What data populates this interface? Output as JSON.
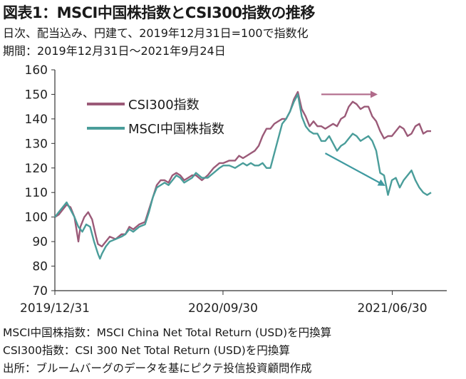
{
  "title": "図表1：MSCI中国株指数とCSI300指数の推移",
  "subtitle_1": "日次、配当込み、円建て、2019年12月31日=100で指数化",
  "subtitle_2": "期間：2019年12月31日～2021年9月24日",
  "notes": [
    "MSCI中国株指数：MSCI China Net Total Return (USD)を円換算",
    "CSI300指数：CSI 300 Net Total Return (USD)を円換算",
    "出所：ブルームバーグのデータを基にピクテ投信投資顧問作成"
  ],
  "colors": {
    "csi300": "#9b5a78",
    "msci": "#4a9d9a",
    "arrow_csi": "#b06a8a",
    "arrow_msci": "#3f9aa0",
    "grid": "#d0d0d0"
  },
  "chart_data": {
    "type": "line",
    "ylim": [
      70,
      160
    ],
    "yticks": [
      70,
      80,
      90,
      100,
      110,
      120,
      130,
      140,
      150,
      160
    ],
    "x_ticks": [
      {
        "label": "2019/12/31",
        "pos": 0
      },
      {
        "label": "2020/09/30",
        "pos": 0.429
      },
      {
        "label": "2021/06/30",
        "pos": 0.861
      }
    ],
    "legend": "upper-left",
    "grid": false,
    "series": [
      {
        "name": "CSI300指数",
        "color": "#9b5a78",
        "points": [
          [
            0,
            100
          ],
          [
            0.01,
            101
          ],
          [
            0.02,
            103
          ],
          [
            0.03,
            105
          ],
          [
            0.04,
            104
          ],
          [
            0.05,
            100
          ],
          [
            0.055,
            95
          ],
          [
            0.06,
            90
          ],
          [
            0.065,
            96
          ],
          [
            0.075,
            100
          ],
          [
            0.085,
            102
          ],
          [
            0.095,
            99
          ],
          [
            0.105,
            92
          ],
          [
            0.11,
            89
          ],
          [
            0.12,
            88
          ],
          [
            0.13,
            90
          ],
          [
            0.14,
            92
          ],
          [
            0.155,
            91
          ],
          [
            0.17,
            93
          ],
          [
            0.18,
            93
          ],
          [
            0.19,
            96
          ],
          [
            0.2,
            95
          ],
          [
            0.215,
            97
          ],
          [
            0.23,
            98
          ],
          [
            0.24,
            103
          ],
          [
            0.25,
            108
          ],
          [
            0.26,
            113
          ],
          [
            0.27,
            115
          ],
          [
            0.28,
            115
          ],
          [
            0.29,
            114
          ],
          [
            0.3,
            117
          ],
          [
            0.31,
            118
          ],
          [
            0.32,
            117
          ],
          [
            0.33,
            115
          ],
          [
            0.34,
            116
          ],
          [
            0.35,
            117
          ],
          [
            0.36,
            117
          ],
          [
            0.375,
            115
          ],
          [
            0.39,
            117
          ],
          [
            0.405,
            120
          ],
          [
            0.42,
            122
          ],
          [
            0.43,
            122
          ],
          [
            0.445,
            123
          ],
          [
            0.46,
            123
          ],
          [
            0.47,
            125
          ],
          [
            0.48,
            124
          ],
          [
            0.49,
            125
          ],
          [
            0.5,
            126
          ],
          [
            0.51,
            127
          ],
          [
            0.52,
            129
          ],
          [
            0.53,
            133
          ],
          [
            0.54,
            136
          ],
          [
            0.55,
            136
          ],
          [
            0.56,
            138
          ],
          [
            0.57,
            139
          ],
          [
            0.58,
            140
          ],
          [
            0.59,
            140
          ],
          [
            0.6,
            143
          ],
          [
            0.61,
            148
          ],
          [
            0.62,
            151
          ],
          [
            0.63,
            144
          ],
          [
            0.64,
            141
          ],
          [
            0.65,
            137
          ],
          [
            0.66,
            139
          ],
          [
            0.67,
            137
          ],
          [
            0.68,
            137
          ],
          [
            0.69,
            136
          ],
          [
            0.7,
            137
          ],
          [
            0.71,
            138
          ],
          [
            0.72,
            137
          ],
          [
            0.73,
            140
          ],
          [
            0.74,
            141
          ],
          [
            0.75,
            145
          ],
          [
            0.76,
            147
          ],
          [
            0.77,
            146
          ],
          [
            0.78,
            144
          ],
          [
            0.79,
            145
          ],
          [
            0.8,
            145
          ],
          [
            0.81,
            141
          ],
          [
            0.82,
            139
          ],
          [
            0.83,
            135
          ],
          [
            0.84,
            132
          ],
          [
            0.85,
            133
          ],
          [
            0.86,
            133
          ],
          [
            0.87,
            135
          ],
          [
            0.88,
            137
          ],
          [
            0.89,
            136
          ],
          [
            0.9,
            133
          ],
          [
            0.91,
            134
          ],
          [
            0.92,
            137
          ],
          [
            0.93,
            138
          ],
          [
            0.94,
            134
          ],
          [
            0.95,
            135
          ],
          [
            0.96,
            135
          ]
        ]
      },
      {
        "name": "MSCI中国株指数",
        "color": "#4a9d9a",
        "points": [
          [
            0,
            100
          ],
          [
            0.01,
            102
          ],
          [
            0.02,
            104
          ],
          [
            0.03,
            106
          ],
          [
            0.04,
            103
          ],
          [
            0.05,
            100
          ],
          [
            0.06,
            96
          ],
          [
            0.07,
            94
          ],
          [
            0.08,
            97
          ],
          [
            0.09,
            96
          ],
          [
            0.1,
            90
          ],
          [
            0.11,
            85
          ],
          [
            0.115,
            83
          ],
          [
            0.12,
            85
          ],
          [
            0.13,
            88
          ],
          [
            0.14,
            90
          ],
          [
            0.155,
            91
          ],
          [
            0.17,
            92
          ],
          [
            0.18,
            93
          ],
          [
            0.19,
            95
          ],
          [
            0.2,
            94
          ],
          [
            0.215,
            96
          ],
          [
            0.23,
            97
          ],
          [
            0.24,
            102
          ],
          [
            0.25,
            108
          ],
          [
            0.26,
            112
          ],
          [
            0.27,
            113
          ],
          [
            0.28,
            114
          ],
          [
            0.29,
            113
          ],
          [
            0.3,
            115
          ],
          [
            0.31,
            117
          ],
          [
            0.32,
            116
          ],
          [
            0.33,
            114
          ],
          [
            0.34,
            115
          ],
          [
            0.35,
            116
          ],
          [
            0.36,
            118
          ],
          [
            0.375,
            116
          ],
          [
            0.39,
            116
          ],
          [
            0.405,
            118
          ],
          [
            0.42,
            120
          ],
          [
            0.43,
            121
          ],
          [
            0.445,
            121
          ],
          [
            0.46,
            120
          ],
          [
            0.47,
            121
          ],
          [
            0.48,
            122
          ],
          [
            0.49,
            121
          ],
          [
            0.5,
            122
          ],
          [
            0.51,
            121
          ],
          [
            0.52,
            121
          ],
          [
            0.53,
            122
          ],
          [
            0.54,
            120
          ],
          [
            0.55,
            120
          ],
          [
            0.56,
            126
          ],
          [
            0.57,
            132
          ],
          [
            0.58,
            138
          ],
          [
            0.59,
            140
          ],
          [
            0.6,
            143
          ],
          [
            0.61,
            147
          ],
          [
            0.62,
            150
          ],
          [
            0.63,
            141
          ],
          [
            0.64,
            137
          ],
          [
            0.65,
            135
          ],
          [
            0.66,
            134
          ],
          [
            0.67,
            134
          ],
          [
            0.68,
            131
          ],
          [
            0.69,
            131
          ],
          [
            0.7,
            133
          ],
          [
            0.71,
            130
          ],
          [
            0.72,
            127
          ],
          [
            0.73,
            129
          ],
          [
            0.74,
            130
          ],
          [
            0.75,
            132
          ],
          [
            0.76,
            134
          ],
          [
            0.77,
            133
          ],
          [
            0.78,
            131
          ],
          [
            0.79,
            132
          ],
          [
            0.8,
            133
          ],
          [
            0.81,
            131
          ],
          [
            0.82,
            127
          ],
          [
            0.83,
            118
          ],
          [
            0.84,
            117
          ],
          [
            0.85,
            109
          ],
          [
            0.86,
            115
          ],
          [
            0.87,
            116
          ],
          [
            0.88,
            112
          ],
          [
            0.89,
            115
          ],
          [
            0.9,
            117
          ],
          [
            0.91,
            119
          ],
          [
            0.92,
            115
          ],
          [
            0.93,
            112
          ],
          [
            0.94,
            110
          ],
          [
            0.95,
            109
          ],
          [
            0.96,
            110
          ]
        ]
      }
    ],
    "annotations": [
      {
        "type": "arrow",
        "series": "CSI300指数",
        "from": [
          0.68,
          150
        ],
        "to": [
          0.82,
          150
        ]
      },
      {
        "type": "arrow",
        "series": "MSCI中国株指数",
        "from": [
          0.69,
          126
        ],
        "to": [
          0.84,
          113
        ]
      }
    ]
  }
}
